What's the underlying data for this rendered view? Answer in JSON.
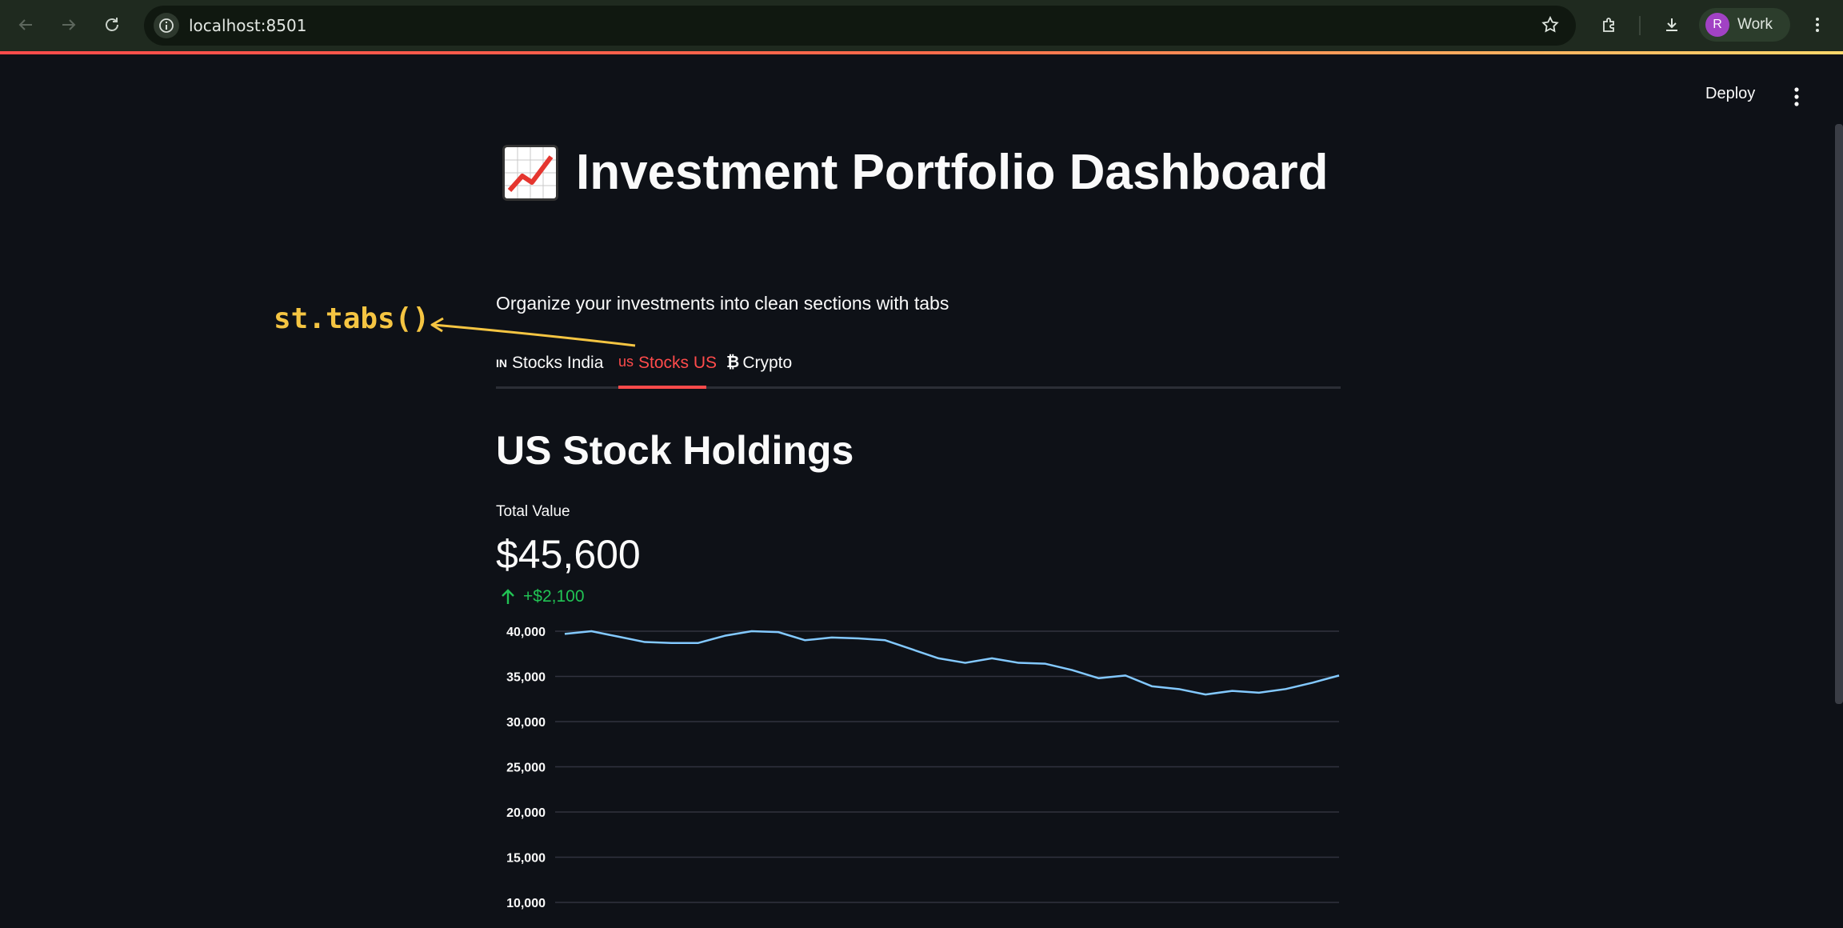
{
  "browser": {
    "url": "localhost:8501",
    "profile_initial": "R",
    "profile_label": "Work"
  },
  "app": {
    "deploy_label": "Deploy",
    "title": "Investment Portfolio Dashboard",
    "title_icon": "chart-increasing-icon",
    "subtitle": "Organize your investments into clean sections with tabs",
    "tabs": [
      {
        "prefix": "IN",
        "label": "Stocks India",
        "active": false
      },
      {
        "prefix": "us",
        "label": "Stocks US",
        "active": true
      },
      {
        "prefix": "₿",
        "label": "Crypto",
        "active": false
      }
    ],
    "annotation": "st.tabs()",
    "section_title": "US Stock Holdings",
    "metric": {
      "label": "Total Value",
      "value": "$45,600",
      "delta": "+$2,100",
      "delta_color": "#21c354"
    },
    "accent_color": "#ff4b4b",
    "annotation_color": "#f5c542"
  },
  "chart_data": {
    "type": "line",
    "x": [
      1,
      2,
      3,
      4,
      5,
      6,
      7,
      8,
      9,
      10,
      11,
      12,
      13,
      14,
      15,
      16,
      17,
      18,
      19,
      20,
      21,
      22,
      23,
      24,
      25,
      26,
      27,
      28,
      29,
      30
    ],
    "series": [
      {
        "values": [
          39700,
          40000,
          39400,
          38800,
          38700,
          38700,
          39500,
          40000,
          39900,
          39000,
          39300,
          39200,
          39000,
          38000,
          37000,
          36500,
          37000,
          36500,
          36400,
          35700,
          34800,
          35100,
          33900,
          33600,
          33000,
          33400,
          33200,
          33600,
          34300,
          35100
        ],
        "color": "#83c9ff"
      }
    ],
    "yticks": [
      "40,000",
      "35,000",
      "30,000",
      "25,000",
      "20,000",
      "15,000",
      "10,000"
    ],
    "ytick_values": [
      40000,
      35000,
      30000,
      25000,
      20000,
      15000,
      10000
    ],
    "ylim": [
      10000,
      41000
    ],
    "grid": true
  }
}
